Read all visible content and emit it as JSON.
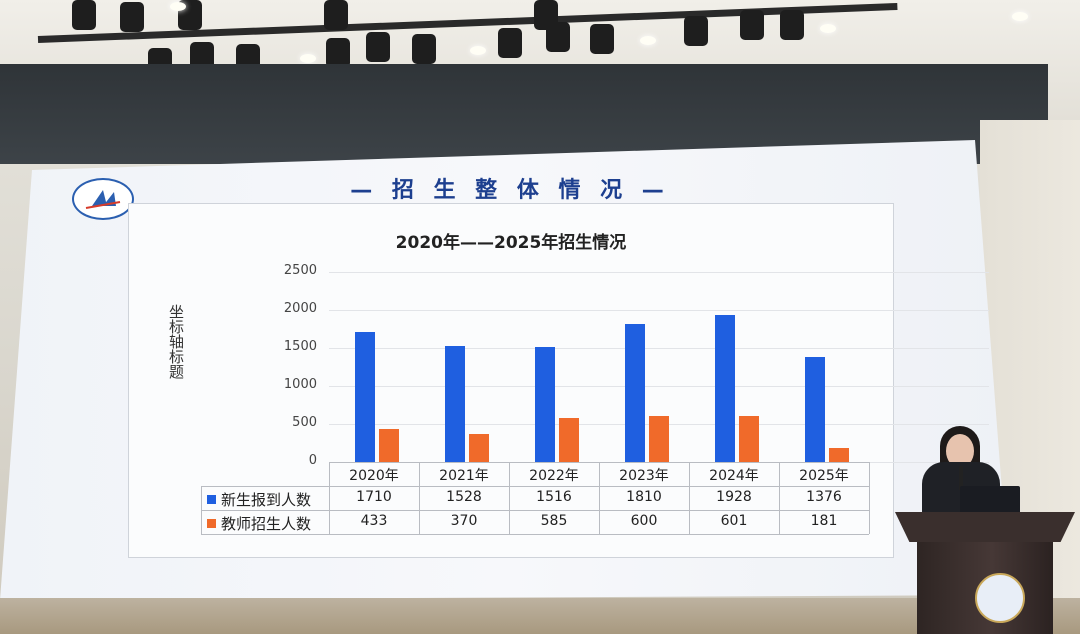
{
  "slide": {
    "header": "— 招 生 整 体 情 况 —"
  },
  "chart_data": {
    "type": "bar",
    "title": "2020年——2025年招生情况",
    "ylabel": "坐标轴标题",
    "xlabel": "",
    "categories": [
      "2020年",
      "2021年",
      "2022年",
      "2023年",
      "2024年",
      "2025年"
    ],
    "series": [
      {
        "name": "新生报到人数",
        "values": [
          1710,
          1528,
          1516,
          1810,
          1928,
          1376
        ],
        "color": "#1f5fe0"
      },
      {
        "name": "教师招生人数",
        "values": [
          433,
          370,
          585,
          600,
          601,
          181
        ],
        "color": "#f06a2a"
      }
    ],
    "yticks": [
      "0",
      "500",
      "1000",
      "1500",
      "2000",
      "2500"
    ],
    "ylim": [
      0,
      2500
    ],
    "grid": true,
    "legend": "data-table"
  }
}
